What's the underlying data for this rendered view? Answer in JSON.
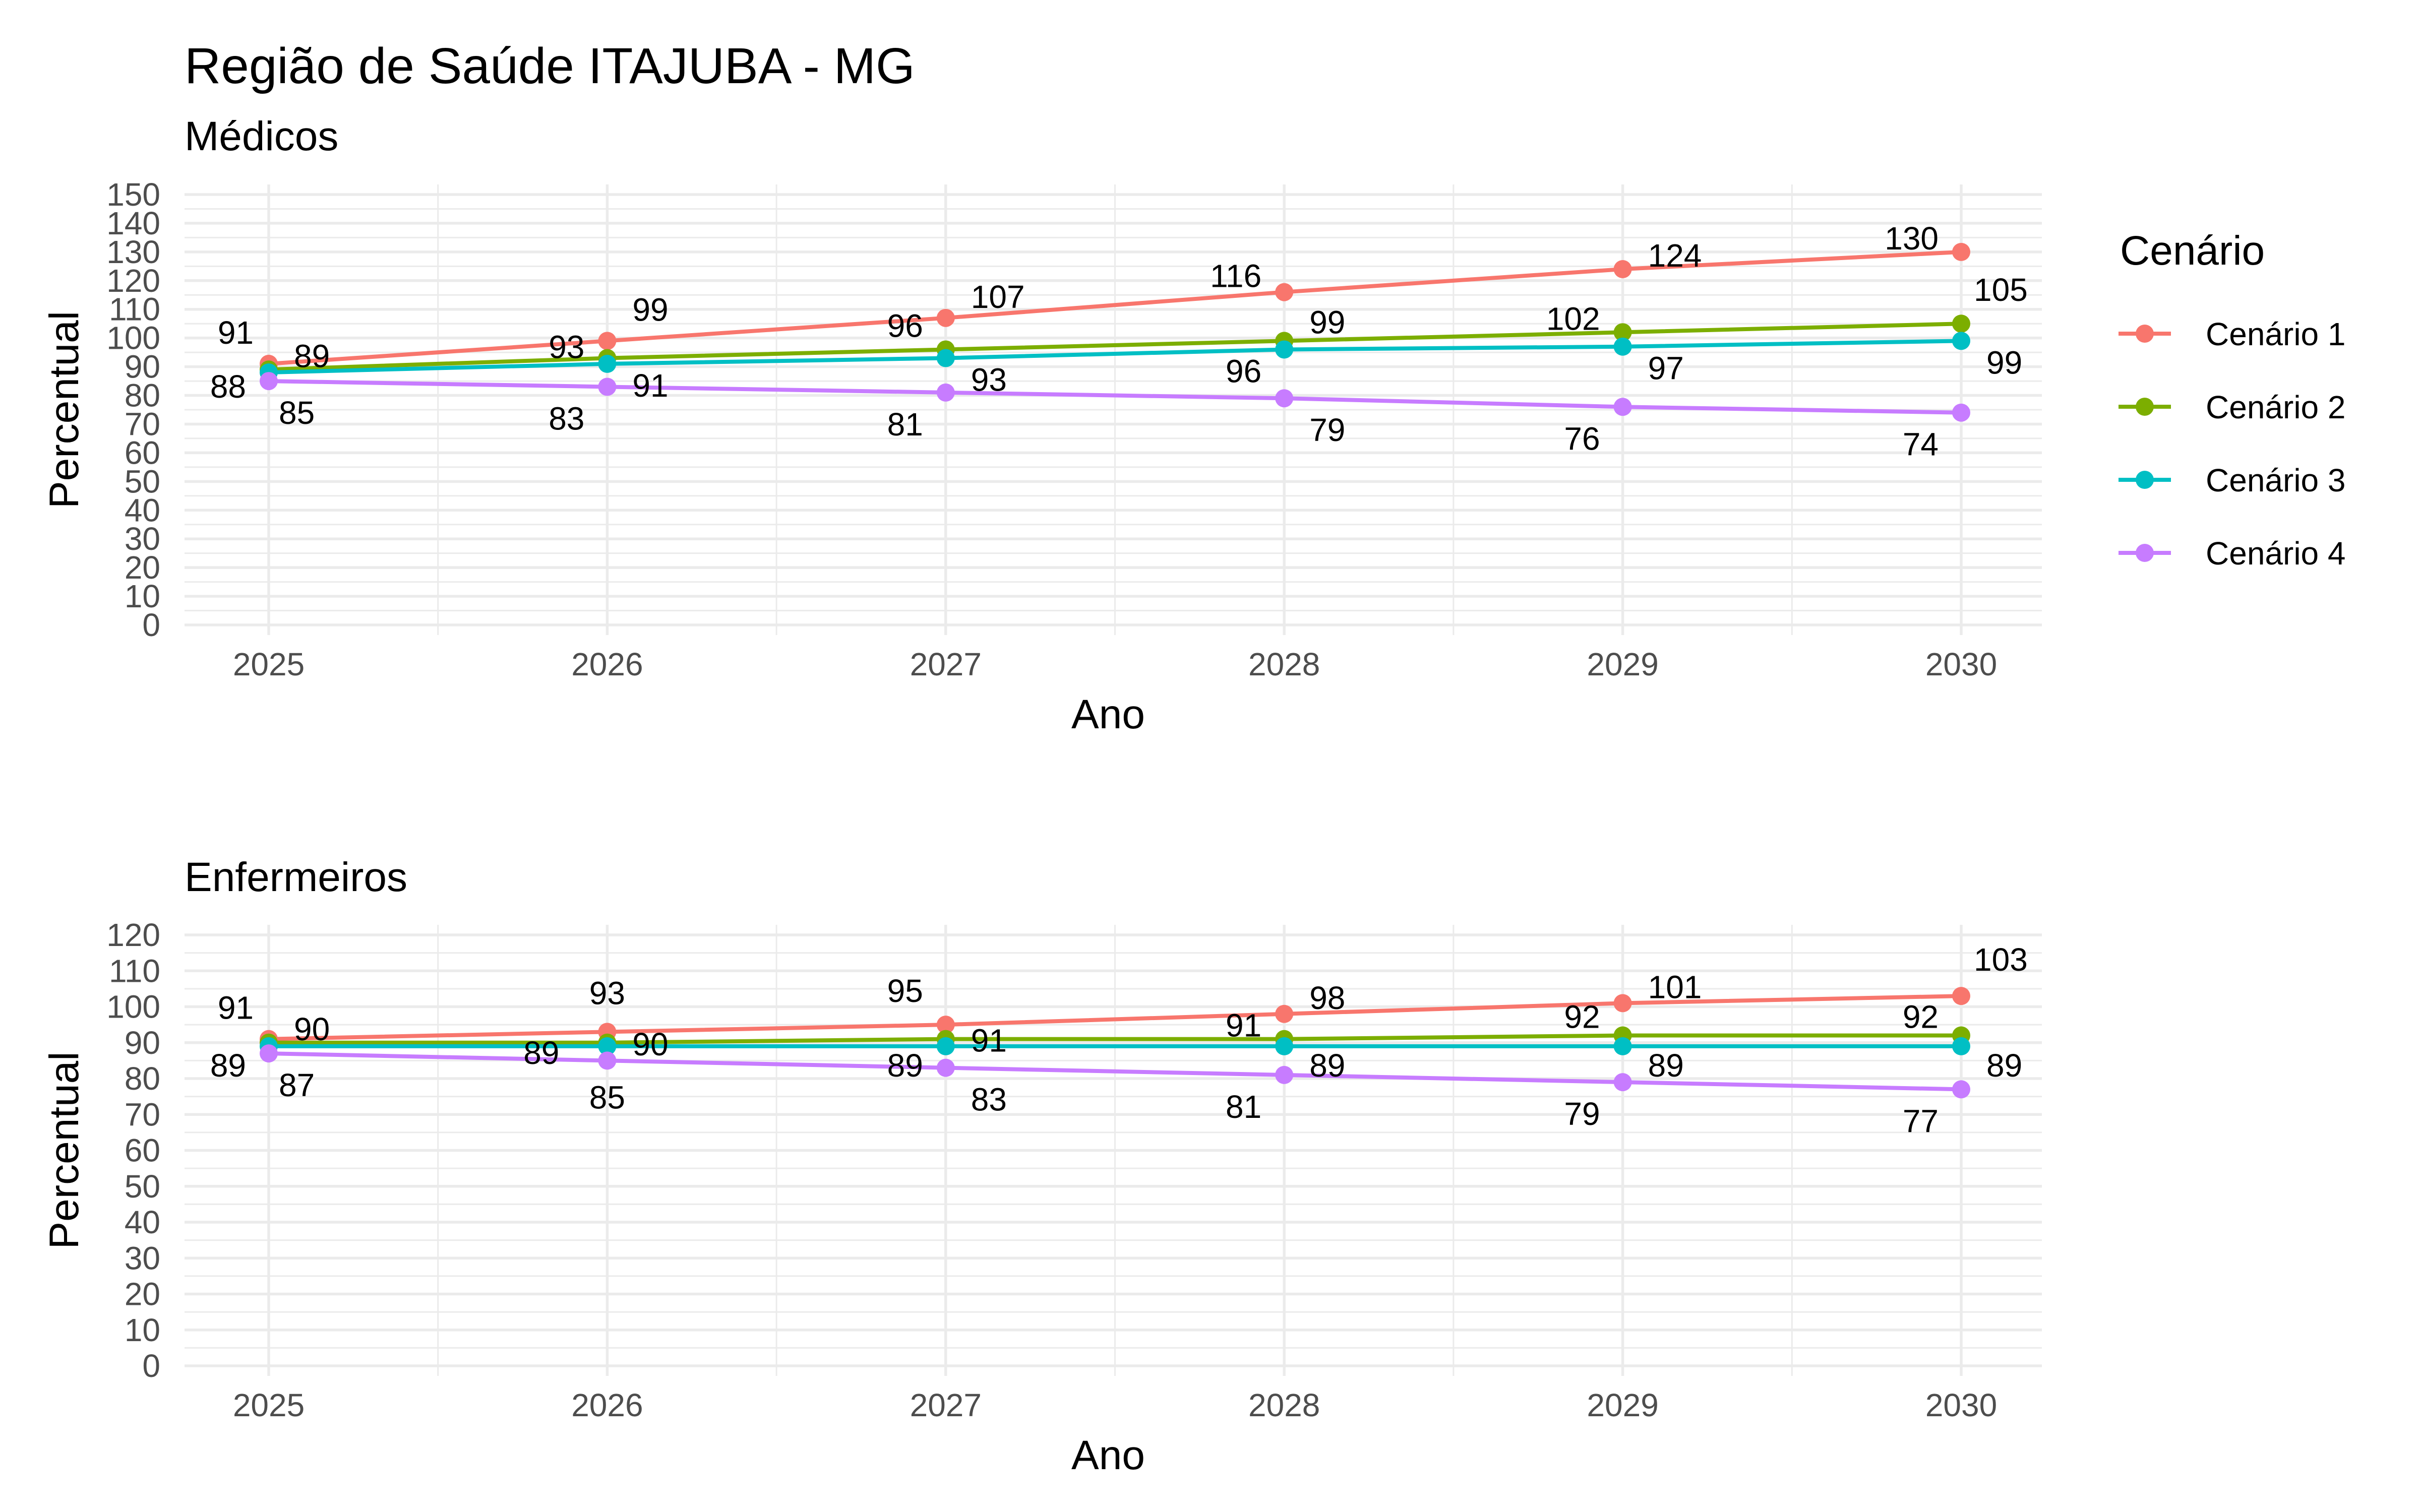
{
  "title": "Região de Saúde ITAJUBA - MG",
  "legend": {
    "title": "Cenário",
    "position": "right",
    "items": [
      "Cenário 1",
      "Cenário 2",
      "Cenário 3",
      "Cenário 4"
    ]
  },
  "colors": {
    "Cenário 1": "#F8766D",
    "Cenário 2": "#7CAE00",
    "Cenário 3": "#00BFC4",
    "Cenário 4": "#C77CFF"
  },
  "chart_data": [
    {
      "type": "line",
      "subtitle": "Médicos",
      "xlabel": "Ano",
      "ylabel": "Percentual",
      "x": [
        2025,
        2026,
        2027,
        2028,
        2029,
        2030
      ],
      "ylim": [
        0,
        150
      ],
      "yticks": [
        0,
        10,
        20,
        30,
        40,
        50,
        60,
        70,
        80,
        90,
        100,
        110,
        120,
        130,
        140,
        150
      ],
      "grid": true,
      "series": [
        {
          "name": "Cenário 1",
          "values": [
            91,
            99,
            107,
            116,
            124,
            130
          ]
        },
        {
          "name": "Cenário 2",
          "values": [
            89,
            93,
            96,
            99,
            102,
            105
          ]
        },
        {
          "name": "Cenário 3",
          "values": [
            88,
            91,
            93,
            96,
            97,
            99
          ]
        },
        {
          "name": "Cenário 4",
          "values": [
            85,
            83,
            81,
            79,
            76,
            74
          ]
        }
      ]
    },
    {
      "type": "line",
      "subtitle": "Enfermeiros",
      "xlabel": "Ano",
      "ylabel": "Percentual",
      "x": [
        2025,
        2026,
        2027,
        2028,
        2029,
        2030
      ],
      "ylim": [
        0,
        120
      ],
      "yticks": [
        0,
        10,
        20,
        30,
        40,
        50,
        60,
        70,
        80,
        90,
        100,
        110,
        120
      ],
      "grid": true,
      "series": [
        {
          "name": "Cenário 1",
          "values": [
            91,
            93,
            95,
            98,
            101,
            103
          ]
        },
        {
          "name": "Cenário 2",
          "values": [
            90,
            90,
            91,
            91,
            92,
            92
          ]
        },
        {
          "name": "Cenário 3",
          "values": [
            89,
            89,
            89,
            89,
            89,
            89
          ]
        },
        {
          "name": "Cenário 4",
          "values": [
            87,
            85,
            83,
            81,
            79,
            77
          ]
        }
      ]
    }
  ]
}
